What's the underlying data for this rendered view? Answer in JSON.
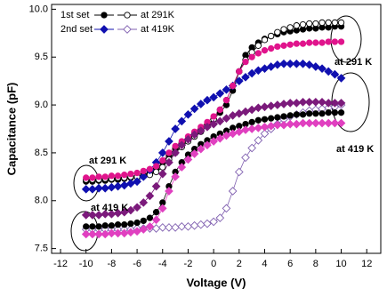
{
  "chart_data": {
    "type": "scatter",
    "x_label": "Voltage (V)",
    "y_label": "Capacitance (pF)",
    "xlim": [
      -12.7,
      13.1
    ],
    "ylim": [
      7.45,
      10.05
    ],
    "xticks": [
      -12,
      -10,
      -8,
      -6,
      -4,
      -2,
      0,
      2,
      4,
      6,
      8,
      10,
      12
    ],
    "yticks": [
      7.5,
      {
        "value": 8,
        "label": "8.0"
      },
      8.5,
      {
        "value": 9,
        "label": "9.0"
      },
      9.5,
      {
        "value": 10,
        "label": "10.0"
      }
    ],
    "x": [
      -10,
      -9.5,
      -9,
      -8.5,
      -8,
      -7.5,
      -7,
      -6.5,
      -6,
      -5.5,
      -5,
      -4.5,
      -4,
      -3.5,
      -3,
      -2.5,
      -2,
      -1.5,
      -1,
      -0.5,
      0,
      0.5,
      1,
      1.5,
      2,
      2.5,
      3,
      3.5,
      4,
      4.5,
      5,
      5.5,
      6,
      6.5,
      7,
      7.5,
      8,
      8.5,
      9,
      9.5,
      10
    ],
    "series": [
      {
        "name": "1st set",
        "color": "#000000",
        "marker": "circle",
        "filled": true,
        "values": [
          8.2,
          8.2,
          8.21,
          8.21,
          8.22,
          8.22,
          8.23,
          8.24,
          8.25,
          8.27,
          8.29,
          8.33,
          8.4,
          8.48,
          8.55,
          8.6,
          8.65,
          8.7,
          8.75,
          8.8,
          8.85,
          8.92,
          9.0,
          9.15,
          9.35,
          9.52,
          9.6,
          9.65,
          9.69,
          9.72,
          9.74,
          9.76,
          9.77,
          9.78,
          9.79,
          9.8,
          9.8,
          9.81,
          9.81,
          9.82,
          9.82
        ]
      },
      {
        "name": "at 291K",
        "color": "#000000",
        "marker": "circle",
        "filled": false,
        "values": [
          8.22,
          8.22,
          8.22,
          8.23,
          8.23,
          8.24,
          8.24,
          8.25,
          8.25,
          8.26,
          8.27,
          8.3,
          8.35,
          8.43,
          8.5,
          8.56,
          8.62,
          8.67,
          8.72,
          8.78,
          8.85,
          8.95,
          9.05,
          9.2,
          9.35,
          9.47,
          9.55,
          9.62,
          9.68,
          9.72,
          9.76,
          9.79,
          9.81,
          9.83,
          9.84,
          9.85,
          9.85,
          9.86,
          9.86,
          9.86,
          9.86
        ]
      },
      {
        "name": "2nd set",
        "color": "#1010b0",
        "marker": "diamond",
        "filled": true,
        "values": [
          8.12,
          8.12,
          8.13,
          8.13,
          8.14,
          8.15,
          8.16,
          8.18,
          8.2,
          8.25,
          8.32,
          8.4,
          8.5,
          8.62,
          8.75,
          8.83,
          8.9,
          8.96,
          9.01,
          9.05,
          9.08,
          9.12,
          9.16,
          9.2,
          9.25,
          9.29,
          9.33,
          9.36,
          9.38,
          9.4,
          9.42,
          9.43,
          9.43,
          9.43,
          9.43,
          9.42,
          9.4,
          9.38,
          9.35,
          9.32,
          9.28
        ]
      },
      {
        "name": "at 419K",
        "color": "#8060b0",
        "marker": "diamond",
        "filled": false,
        "values": [
          7.7,
          7.7,
          7.7,
          7.7,
          7.7,
          7.7,
          7.7,
          7.7,
          7.71,
          7.71,
          7.71,
          7.71,
          7.72,
          7.72,
          7.72,
          7.73,
          7.73,
          7.74,
          7.75,
          7.76,
          7.78,
          7.82,
          7.92,
          8.1,
          8.3,
          8.45,
          8.55,
          8.63,
          8.7,
          8.75,
          8.8,
          8.85,
          8.88,
          8.9,
          8.92,
          8.94,
          8.95,
          8.96,
          8.97,
          8.98,
          9.0
        ]
      },
      {
        "color": "#e0148c",
        "marker": "circle",
        "filled": true,
        "values": [
          8.24,
          8.24,
          8.25,
          8.25,
          8.26,
          8.26,
          8.27,
          8.28,
          8.29,
          8.31,
          8.33,
          8.36,
          8.42,
          8.5,
          8.57,
          8.62,
          8.67,
          8.72,
          8.77,
          8.82,
          8.88,
          8.95,
          9.05,
          9.2,
          9.35,
          9.45,
          9.5,
          9.54,
          9.57,
          9.59,
          9.61,
          9.62,
          9.63,
          9.64,
          9.64,
          9.65,
          9.65,
          9.65,
          9.66,
          9.66,
          9.66
        ]
      },
      {
        "color": "#000000",
        "marker": "circle",
        "filled": true,
        "values": [
          7.73,
          7.73,
          7.73,
          7.74,
          7.74,
          7.75,
          7.75,
          7.76,
          7.77,
          7.79,
          7.82,
          7.88,
          7.98,
          8.15,
          8.3,
          8.4,
          8.48,
          8.54,
          8.59,
          8.63,
          8.67,
          8.7,
          8.73,
          8.76,
          8.78,
          8.8,
          8.82,
          8.84,
          8.85,
          8.86,
          8.87,
          8.88,
          8.89,
          8.9,
          8.9,
          8.91,
          8.91,
          8.91,
          8.92,
          8.92,
          8.92
        ]
      },
      {
        "color": "#7b1a7b",
        "marker": "diamond",
        "filled": true,
        "values": [
          7.85,
          7.85,
          7.85,
          7.86,
          7.86,
          7.87,
          7.88,
          7.9,
          7.93,
          7.98,
          8.05,
          8.15,
          8.28,
          8.4,
          8.5,
          8.58,
          8.64,
          8.69,
          8.73,
          8.77,
          8.8,
          8.83,
          8.86,
          8.89,
          8.91,
          8.93,
          8.95,
          8.97,
          8.98,
          8.99,
          9.0,
          9.01,
          9.02,
          9.02,
          9.03,
          9.03,
          9.03,
          9.03,
          9.02,
          9.02,
          9.02
        ]
      },
      {
        "color": "#e040c0",
        "marker": "diamond",
        "filled": true,
        "values": [
          7.65,
          7.65,
          7.65,
          7.65,
          7.66,
          7.66,
          7.66,
          7.67,
          7.68,
          7.7,
          7.73,
          7.8,
          7.92,
          8.1,
          8.25,
          8.35,
          8.43,
          8.49,
          8.54,
          8.58,
          8.62,
          8.65,
          8.68,
          8.7,
          8.72,
          8.74,
          8.75,
          8.76,
          8.77,
          8.78,
          8.79,
          8.79,
          8.8,
          8.8,
          8.81,
          8.81,
          8.81,
          8.81,
          8.81,
          8.81,
          8.81
        ]
      }
    ],
    "annotations": [
      {
        "text": "at 291 K"
      },
      {
        "text": "at 291 K"
      },
      {
        "text": "at 419 K"
      },
      {
        "text": "at 419 K"
      }
    ]
  }
}
